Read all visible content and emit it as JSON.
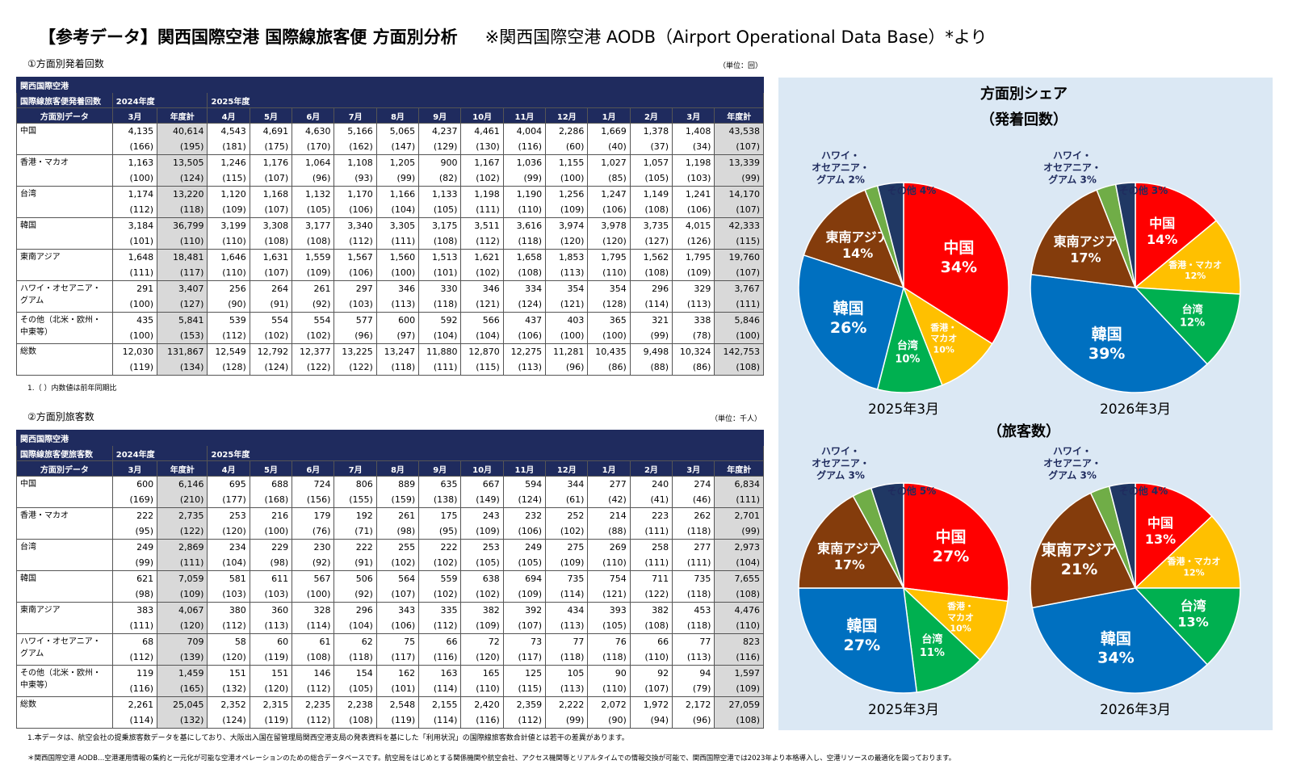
{
  "title": "【参考データ】関西国際空港 国際線旅客便 方面別分析",
  "source": "※関西国際空港 AODB（Airport Operational Data Base）*より",
  "table1": {
    "section_label": "①方面別発着回数",
    "unit": "（単位：回）",
    "head_line1": "関西国際空港",
    "head_line2": "国際線旅客便発着回数",
    "head_line3": "方面別データ",
    "fy2024": "2024年度",
    "fy2025": "2025年度",
    "months": [
      "3月",
      "年度計",
      "4月",
      "5月",
      "6月",
      "7月",
      "8月",
      "9月",
      "10月",
      "11月",
      "12月",
      "1月",
      "2月",
      "3月",
      "年度計"
    ],
    "rows": [
      {
        "cat": "中国",
        "v": [
          "4,135",
          "40,614",
          "4,543",
          "4,691",
          "4,630",
          "5,166",
          "5,065",
          "4,237",
          "4,461",
          "4,004",
          "2,286",
          "1,669",
          "1,378",
          "1,408",
          "43,538"
        ],
        "p": [
          "(166)",
          "(195)",
          "(181)",
          "(175)",
          "(170)",
          "(162)",
          "(147)",
          "(129)",
          "(130)",
          "(116)",
          "(60)",
          "(40)",
          "(37)",
          "(34)",
          "(107)"
        ]
      },
      {
        "cat": "香港・マカオ",
        "v": [
          "1,163",
          "13,505",
          "1,246",
          "1,176",
          "1,064",
          "1,108",
          "1,205",
          "900",
          "1,167",
          "1,036",
          "1,155",
          "1,027",
          "1,057",
          "1,198",
          "13,339"
        ],
        "p": [
          "(100)",
          "(124)",
          "(115)",
          "(107)",
          "(96)",
          "(93)",
          "(99)",
          "(82)",
          "(102)",
          "(99)",
          "(100)",
          "(85)",
          "(105)",
          "(103)",
          "(99)"
        ]
      },
      {
        "cat": "台湾",
        "v": [
          "1,174",
          "13,220",
          "1,120",
          "1,168",
          "1,132",
          "1,170",
          "1,166",
          "1,133",
          "1,198",
          "1,190",
          "1,256",
          "1,247",
          "1,149",
          "1,241",
          "14,170"
        ],
        "p": [
          "(112)",
          "(118)",
          "(109)",
          "(107)",
          "(105)",
          "(106)",
          "(104)",
          "(105)",
          "(111)",
          "(110)",
          "(109)",
          "(106)",
          "(108)",
          "(106)",
          "(107)"
        ]
      },
      {
        "cat": "韓国",
        "v": [
          "3,184",
          "36,799",
          "3,199",
          "3,308",
          "3,177",
          "3,340",
          "3,305",
          "3,175",
          "3,511",
          "3,616",
          "3,974",
          "3,978",
          "3,735",
          "4,015",
          "42,333"
        ],
        "p": [
          "(101)",
          "(110)",
          "(110)",
          "(108)",
          "(108)",
          "(112)",
          "(111)",
          "(108)",
          "(112)",
          "(118)",
          "(120)",
          "(120)",
          "(127)",
          "(126)",
          "(115)"
        ]
      },
      {
        "cat": "東南アジア",
        "v": [
          "1,648",
          "18,481",
          "1,646",
          "1,631",
          "1,559",
          "1,567",
          "1,560",
          "1,513",
          "1,621",
          "1,658",
          "1,853",
          "1,795",
          "1,562",
          "1,795",
          "19,760"
        ],
        "p": [
          "(111)",
          "(117)",
          "(110)",
          "(107)",
          "(109)",
          "(106)",
          "(100)",
          "(101)",
          "(102)",
          "(108)",
          "(113)",
          "(110)",
          "(108)",
          "(109)",
          "(107)"
        ]
      },
      {
        "cat": "ハワイ・オセアニア・",
        "cat2": "グアム",
        "v": [
          "291",
          "3,407",
          "256",
          "264",
          "261",
          "297",
          "346",
          "330",
          "346",
          "334",
          "354",
          "354",
          "296",
          "329",
          "3,767"
        ],
        "p": [
          "(100)",
          "(127)",
          "(90)",
          "(91)",
          "(92)",
          "(103)",
          "(113)",
          "(118)",
          "(121)",
          "(124)",
          "(121)",
          "(128)",
          "(114)",
          "(113)",
          "(111)"
        ]
      },
      {
        "cat": "その他（北米・欧州・",
        "cat2": "中東等）",
        "v": [
          "435",
          "5,841",
          "539",
          "554",
          "554",
          "577",
          "600",
          "592",
          "566",
          "437",
          "403",
          "365",
          "321",
          "338",
          "5,846"
        ],
        "p": [
          "(100)",
          "(153)",
          "(112)",
          "(102)",
          "(102)",
          "(96)",
          "(97)",
          "(104)",
          "(104)",
          "(106)",
          "(100)",
          "(100)",
          "(99)",
          "(78)",
          "(100)"
        ]
      },
      {
        "cat": "総数",
        "v": [
          "12,030",
          "131,867",
          "12,549",
          "12,792",
          "12,377",
          "13,225",
          "13,247",
          "11,880",
          "12,870",
          "12,275",
          "11,281",
          "10,435",
          "9,498",
          "10,324",
          "142,753"
        ],
        "p": [
          "(119)",
          "(134)",
          "(128)",
          "(124)",
          "(122)",
          "(122)",
          "(118)",
          "(111)",
          "(115)",
          "(113)",
          "(96)",
          "(86)",
          "(88)",
          "(86)",
          "(108)"
        ]
      }
    ],
    "footnote": "1.（ ）内数値は前年同期比"
  },
  "table2": {
    "section_label": "②方面別旅客数",
    "unit": "（単位：千人）",
    "head_line1": "関西国際空港",
    "head_line2": "国際線旅客便旅客数",
    "head_line3": "方面別データ",
    "fy2024": "2024年度",
    "fy2025": "2025年度",
    "months": [
      "3月",
      "年度計",
      "4月",
      "5月",
      "6月",
      "7月",
      "8月",
      "9月",
      "10月",
      "11月",
      "12月",
      "1月",
      "2月",
      "3月",
      "年度計"
    ],
    "rows": [
      {
        "cat": "中国",
        "v": [
          "600",
          "6,146",
          "695",
          "688",
          "724",
          "806",
          "889",
          "635",
          "667",
          "594",
          "344",
          "277",
          "240",
          "274",
          "6,834"
        ],
        "p": [
          "(169)",
          "(210)",
          "(177)",
          "(168)",
          "(156)",
          "(155)",
          "(159)",
          "(138)",
          "(149)",
          "(124)",
          "(61)",
          "(42)",
          "(41)",
          "(46)",
          "(111)"
        ]
      },
      {
        "cat": "香港・マカオ",
        "v": [
          "222",
          "2,735",
          "253",
          "216",
          "179",
          "192",
          "261",
          "175",
          "243",
          "232",
          "252",
          "214",
          "223",
          "262",
          "2,701"
        ],
        "p": [
          "(95)",
          "(122)",
          "(120)",
          "(100)",
          "(76)",
          "(71)",
          "(98)",
          "(95)",
          "(109)",
          "(106)",
          "(102)",
          "(88)",
          "(111)",
          "(118)",
          "(99)"
        ]
      },
      {
        "cat": "台湾",
        "v": [
          "249",
          "2,869",
          "234",
          "229",
          "230",
          "222",
          "255",
          "222",
          "253",
          "249",
          "275",
          "269",
          "258",
          "277",
          "2,973"
        ],
        "p": [
          "(99)",
          "(111)",
          "(104)",
          "(98)",
          "(92)",
          "(91)",
          "(102)",
          "(102)",
          "(105)",
          "(105)",
          "(109)",
          "(110)",
          "(111)",
          "(111)",
          "(104)"
        ]
      },
      {
        "cat": "韓国",
        "v": [
          "621",
          "7,059",
          "581",
          "611",
          "567",
          "506",
          "564",
          "559",
          "638",
          "694",
          "735",
          "754",
          "711",
          "735",
          "7,655"
        ],
        "p": [
          "(98)",
          "(109)",
          "(103)",
          "(103)",
          "(100)",
          "(92)",
          "(107)",
          "(102)",
          "(102)",
          "(109)",
          "(114)",
          "(121)",
          "(122)",
          "(118)",
          "(108)"
        ]
      },
      {
        "cat": "東南アジア",
        "v": [
          "383",
          "4,067",
          "380",
          "360",
          "328",
          "296",
          "343",
          "335",
          "382",
          "392",
          "434",
          "393",
          "382",
          "453",
          "4,476"
        ],
        "p": [
          "(111)",
          "(120)",
          "(112)",
          "(113)",
          "(114)",
          "(104)",
          "(106)",
          "(112)",
          "(109)",
          "(107)",
          "(113)",
          "(105)",
          "(108)",
          "(118)",
          "(110)"
        ]
      },
      {
        "cat": "ハワイ・オセアニア・",
        "cat2": "グアム",
        "v": [
          "68",
          "709",
          "58",
          "60",
          "61",
          "62",
          "75",
          "66",
          "72",
          "73",
          "77",
          "76",
          "66",
          "77",
          "823"
        ],
        "p": [
          "(112)",
          "(139)",
          "(120)",
          "(119)",
          "(108)",
          "(118)",
          "(117)",
          "(116)",
          "(120)",
          "(117)",
          "(118)",
          "(118)",
          "(110)",
          "(113)",
          "(116)"
        ]
      },
      {
        "cat": "その他（北米・欧州・",
        "cat2": "中東等）",
        "v": [
          "119",
          "1,459",
          "151",
          "151",
          "146",
          "154",
          "162",
          "163",
          "165",
          "125",
          "105",
          "90",
          "92",
          "94",
          "1,597"
        ],
        "p": [
          "(116)",
          "(165)",
          "(132)",
          "(120)",
          "(112)",
          "(105)",
          "(101)",
          "(114)",
          "(110)",
          "(115)",
          "(113)",
          "(110)",
          "(107)",
          "(79)",
          "(109)"
        ]
      },
      {
        "cat": "総数",
        "v": [
          "2,261",
          "25,045",
          "2,352",
          "2,315",
          "2,235",
          "2,238",
          "2,548",
          "2,155",
          "2,420",
          "2,359",
          "2,222",
          "2,072",
          "1,972",
          "2,172",
          "27,059"
        ],
        "p": [
          "(114)",
          "(132)",
          "(124)",
          "(119)",
          "(112)",
          "(108)",
          "(119)",
          "(114)",
          "(116)",
          "(112)",
          "(99)",
          "(90)",
          "(94)",
          "(96)",
          "(108)"
        ]
      }
    ],
    "footnote": "1.本データは、航空会社の提乗旅客数データを基にしており、大阪出入国在留管理局関西空港支局の発表資料を基にした「利用状況」の国際線旅客数合計値とは若干の差異があります。"
  },
  "bottom_note": "＊関西国際空港 AODB…空港運用情報の集約と一元化が可能な空港オペレーションのための総合データベースです。航空局をはじめとする関係機関や航空会社、アクセス機関等とリアルタイムでの情報交換が可能で、関西国際空港では2023年より本格導入し、空港リソースの最適化を図っております。",
  "charts": {
    "panel_title": "方面別シェア",
    "sub1": "（発着回数）",
    "sub2": "（旅客数）",
    "colors": {
      "中国": "#ff0000",
      "香港・マカオ": "#ffc000",
      "台湾": "#00b050",
      "韓国": "#0070c0",
      "東南アジア": "#843c0c",
      "ハワイ・オセアニア・グアム": "#70ad47",
      "その他": "#203864"
    }
  },
  "chart_data": [
    {
      "type": "pie",
      "caption": "2025年3月",
      "group": "発着回数",
      "labels": [
        "中国",
        "香港・マカオ",
        "台湾",
        "韓国",
        "東南アジア",
        "ハワイ・オセアニア・グアム",
        "その他"
      ],
      "values": [
        34,
        10,
        10,
        26,
        14,
        2,
        4
      ],
      "display": [
        "中国\n34%",
        "香港・\nマカオ\n10%",
        "台湾\n10%",
        "韓国\n26%",
        "東南アジア\n14%",
        "ハワイ・\nオセアニア・\nグアム 2%",
        "その他 4%"
      ]
    },
    {
      "type": "pie",
      "caption": "2026年3月",
      "group": "発着回数",
      "labels": [
        "中国",
        "香港・マカオ",
        "台湾",
        "韓国",
        "東南アジア",
        "ハワイ・オセアニア・グアム",
        "その他"
      ],
      "values": [
        14,
        12,
        12,
        39,
        17,
        3,
        3
      ],
      "display": [
        "中国\n14%",
        "香港・マカオ\n12%",
        "台湾\n12%",
        "韓国\n39%",
        "東南アジア\n17%",
        "ハワイ・\nオセアニア・\nグアム 3%",
        "その他 3%"
      ]
    },
    {
      "type": "pie",
      "caption": "2025年3月",
      "group": "旅客数",
      "labels": [
        "中国",
        "香港・マカオ",
        "台湾",
        "韓国",
        "東南アジア",
        "ハワイ・オセアニア・グアム",
        "その他"
      ],
      "values": [
        27,
        10,
        11,
        27,
        17,
        3,
        5
      ],
      "display": [
        "中国\n27%",
        "香港・\nマカオ\n10%",
        "台湾\n11%",
        "韓国\n27%",
        "東南アジア\n17%",
        "ハワイ・\nオセアニア・\nグアム 3%",
        "その他 5%"
      ]
    },
    {
      "type": "pie",
      "caption": "2026年3月",
      "group": "旅客数",
      "labels": [
        "中国",
        "香港・マカオ",
        "台湾",
        "韓国",
        "東南アジア",
        "ハワイ・オセアニア・グアム",
        "その他"
      ],
      "values": [
        13,
        12,
        13,
        34,
        21,
        3,
        4
      ],
      "display": [
        "中国\n13%",
        "香港・マカオ\n12%",
        "台湾\n13%",
        "韓国\n34%",
        "東南アジア\n21%",
        "ハワイ・\nオセアニア・\nグアム 3%",
        "その他 4%"
      ]
    }
  ]
}
